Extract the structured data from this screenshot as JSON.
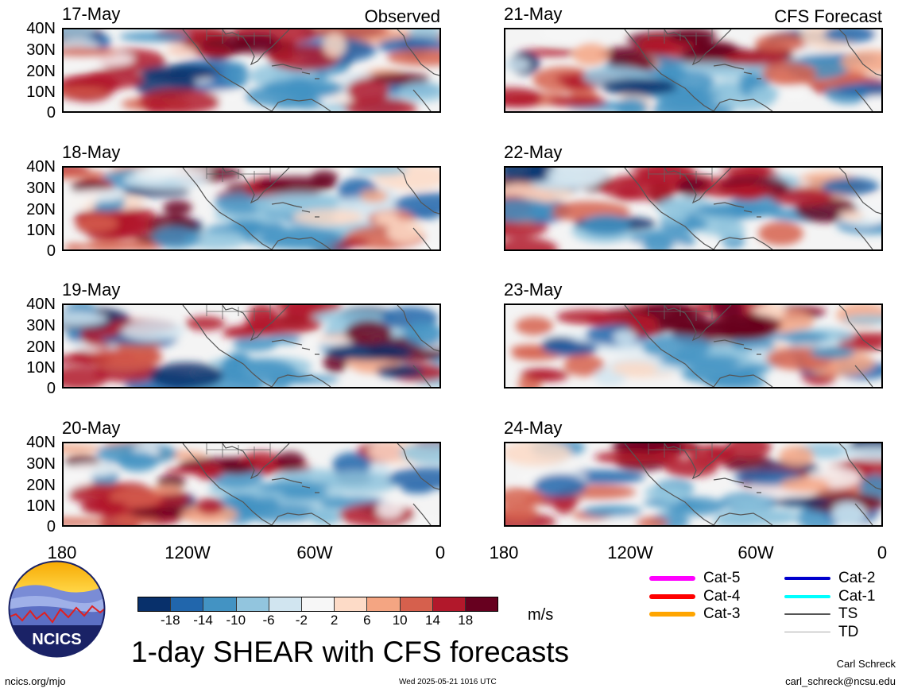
{
  "headers": {
    "observed": "Observed",
    "forecast": "CFS Forecast"
  },
  "lat_ticks": [
    "40N",
    "30N",
    "20N",
    "10N",
    "0"
  ],
  "lon_ticks": [
    "180",
    "120W",
    "60W",
    "0"
  ],
  "panels": [
    {
      "date": "17-May"
    },
    {
      "date": "18-May"
    },
    {
      "date": "19-May"
    },
    {
      "date": "20-May"
    },
    {
      "date": "21-May"
    },
    {
      "date": "22-May"
    },
    {
      "date": "23-May"
    },
    {
      "date": "24-May"
    }
  ],
  "colorbar": {
    "labels": [
      "-18",
      "-14",
      "-10",
      "-6",
      "-2",
      "2",
      "6",
      "10",
      "14",
      "18"
    ],
    "colors": [
      "#08306b",
      "#2166ac",
      "#4393c3",
      "#92c5de",
      "#d1e5f0",
      "#f7f7f7",
      "#fddbc7",
      "#f4a582",
      "#d6604d",
      "#b2182b",
      "#67001f"
    ],
    "units": "m/s"
  },
  "title": "1-day SHEAR with CFS forecasts",
  "legend": [
    {
      "label": "Cat-5",
      "color": "#ff00ff"
    },
    {
      "label": "Cat-4",
      "color": "#ff0000"
    },
    {
      "label": "Cat-3",
      "color": "#ffa500"
    },
    {
      "label": "Cat-2",
      "color": "#0000cd"
    },
    {
      "label": "Cat-1",
      "color": "#00ffff"
    },
    {
      "label": "TS",
      "color": "#555555"
    },
    {
      "label": "TD",
      "color": "#aaaaaa"
    }
  ],
  "logo": {
    "text": "NCICS"
  },
  "footer": {
    "left": "ncics.org/mjo",
    "timestamp": "Wed 2025-05-21 1016 UTC",
    "author": "Carl Schreck",
    "email": "carl_schreck@ncsu.edu"
  }
}
